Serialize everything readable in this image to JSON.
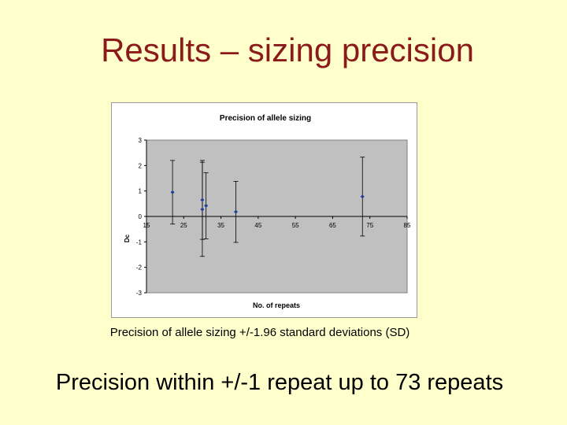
{
  "slide": {
    "title": "Results – sizing precision",
    "caption": "Precision of allele sizing +/-1.96 standard deviations (SD)",
    "note": "Precision within +/-1 repeat up to 73 repeats"
  },
  "chart_data": {
    "type": "scatter",
    "title": "Precision of allele sizing",
    "xlabel": "No. of repeats",
    "ylabel": "Dc",
    "xlim": [
      15,
      85
    ],
    "ylim": [
      -3,
      3
    ],
    "x_ticks": [
      "15",
      "25",
      "35",
      "45",
      "55",
      "65",
      "75",
      "85"
    ],
    "y_ticks": [
      "3",
      "2",
      "1",
      "0",
      "-1",
      "-2",
      "-3"
    ],
    "grid": false,
    "legend": "none",
    "colors": {
      "plot_bg": "#c0c0c0",
      "marker": "#1f3f99",
      "error_bar": "#000000"
    },
    "points": [
      {
        "x": 22,
        "y": 0.95,
        "err": 1.25
      },
      {
        "x": 30,
        "y": 0.65,
        "err": 1.55
      },
      {
        "x": 30,
        "y": 0.28,
        "err": 1.85
      },
      {
        "x": 31,
        "y": 0.42,
        "err": 1.3
      },
      {
        "x": 39,
        "y": 0.18,
        "err": 1.2
      },
      {
        "x": 73,
        "y": 0.78,
        "err": 1.55
      }
    ]
  }
}
